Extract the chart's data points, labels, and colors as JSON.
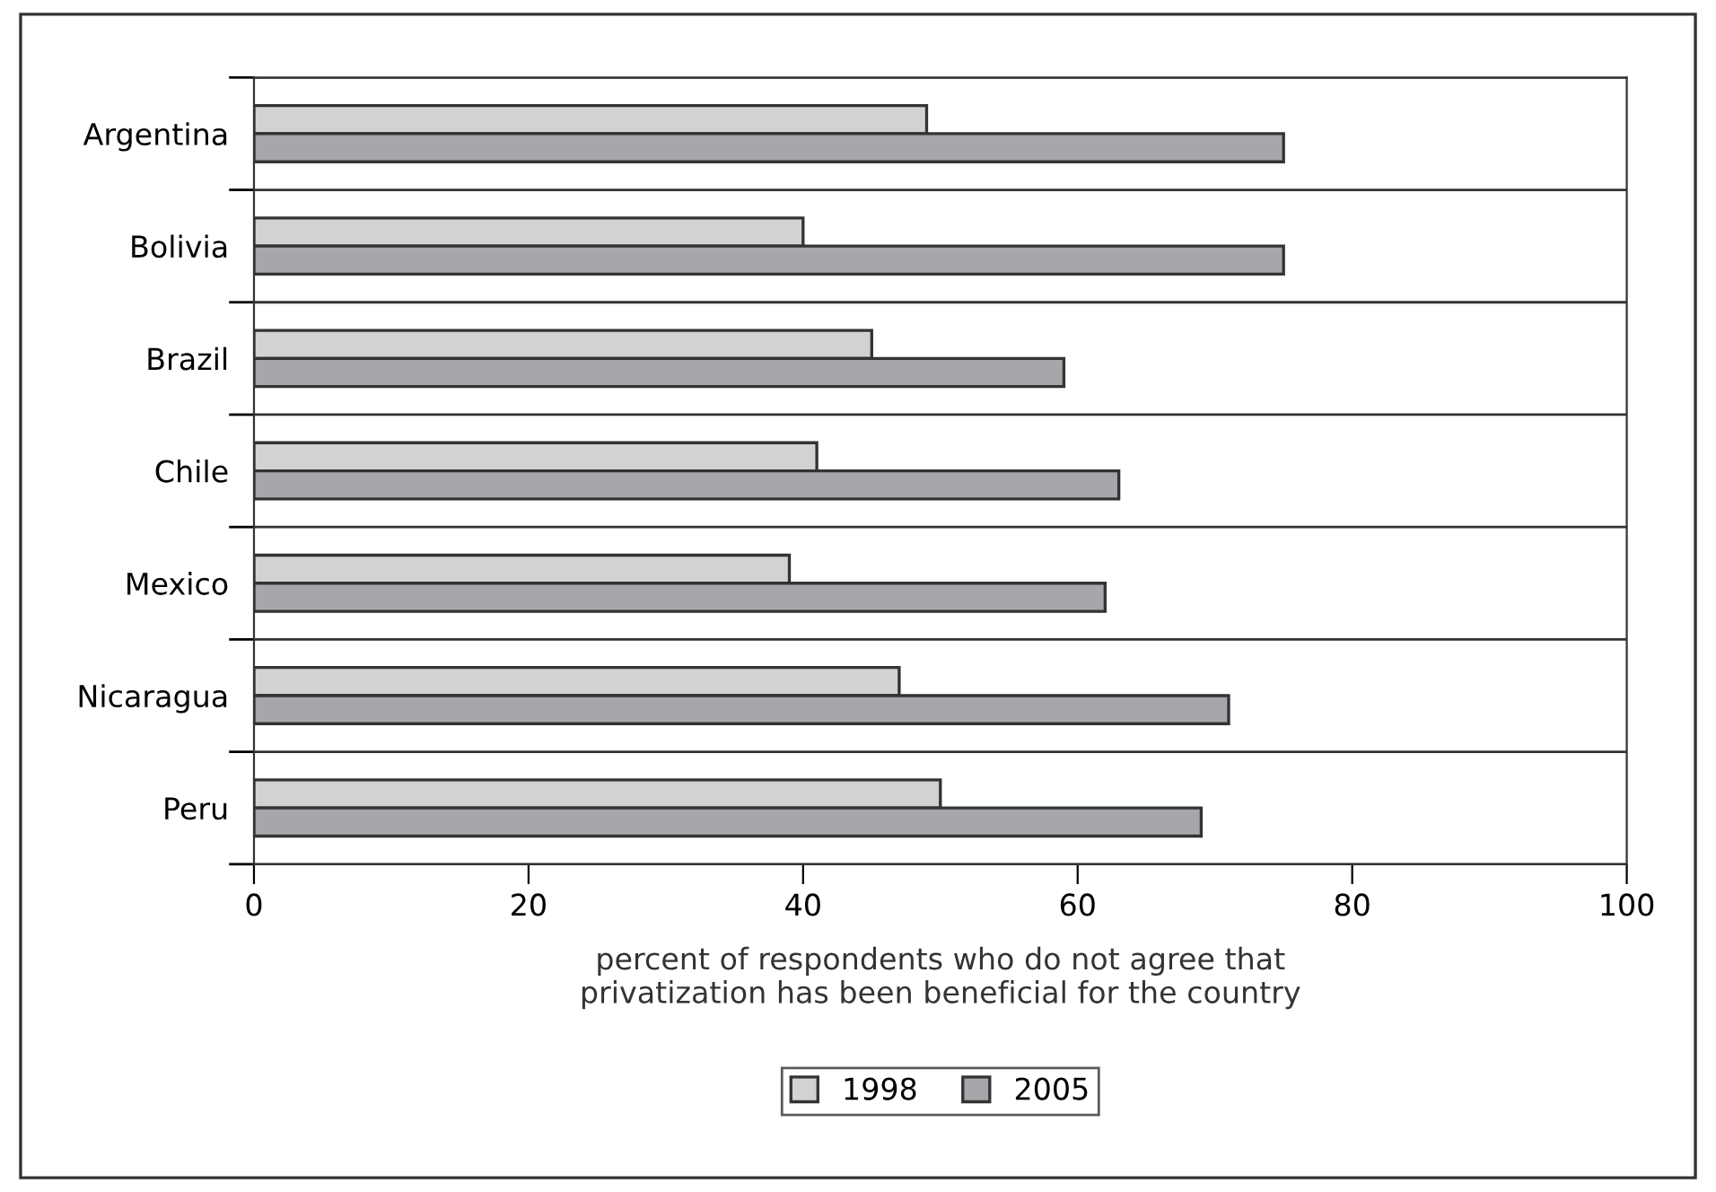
{
  "chart_data": {
    "type": "bar",
    "orientation": "horizontal",
    "categories": [
      "Argentina",
      "Bolivia",
      "Brazil",
      "Chile",
      "Mexico",
      "Nicaragua",
      "Peru"
    ],
    "series": [
      {
        "name": "1998",
        "color": "#d1d2d4",
        "values": [
          49,
          40,
          45,
          41,
          39,
          47,
          50
        ]
      },
      {
        "name": "2005",
        "color": "#a6a7aa",
        "values": [
          75,
          75,
          59,
          63,
          62,
          71,
          69
        ]
      }
    ],
    "xlabel": "percent of respondents who do not agree that\nprivatization has been beneficial for the country",
    "xlim": [
      0,
      100
    ],
    "xticks": [
      0,
      20,
      40,
      60,
      80,
      100
    ],
    "grid": "y",
    "legend": "bottom"
  }
}
